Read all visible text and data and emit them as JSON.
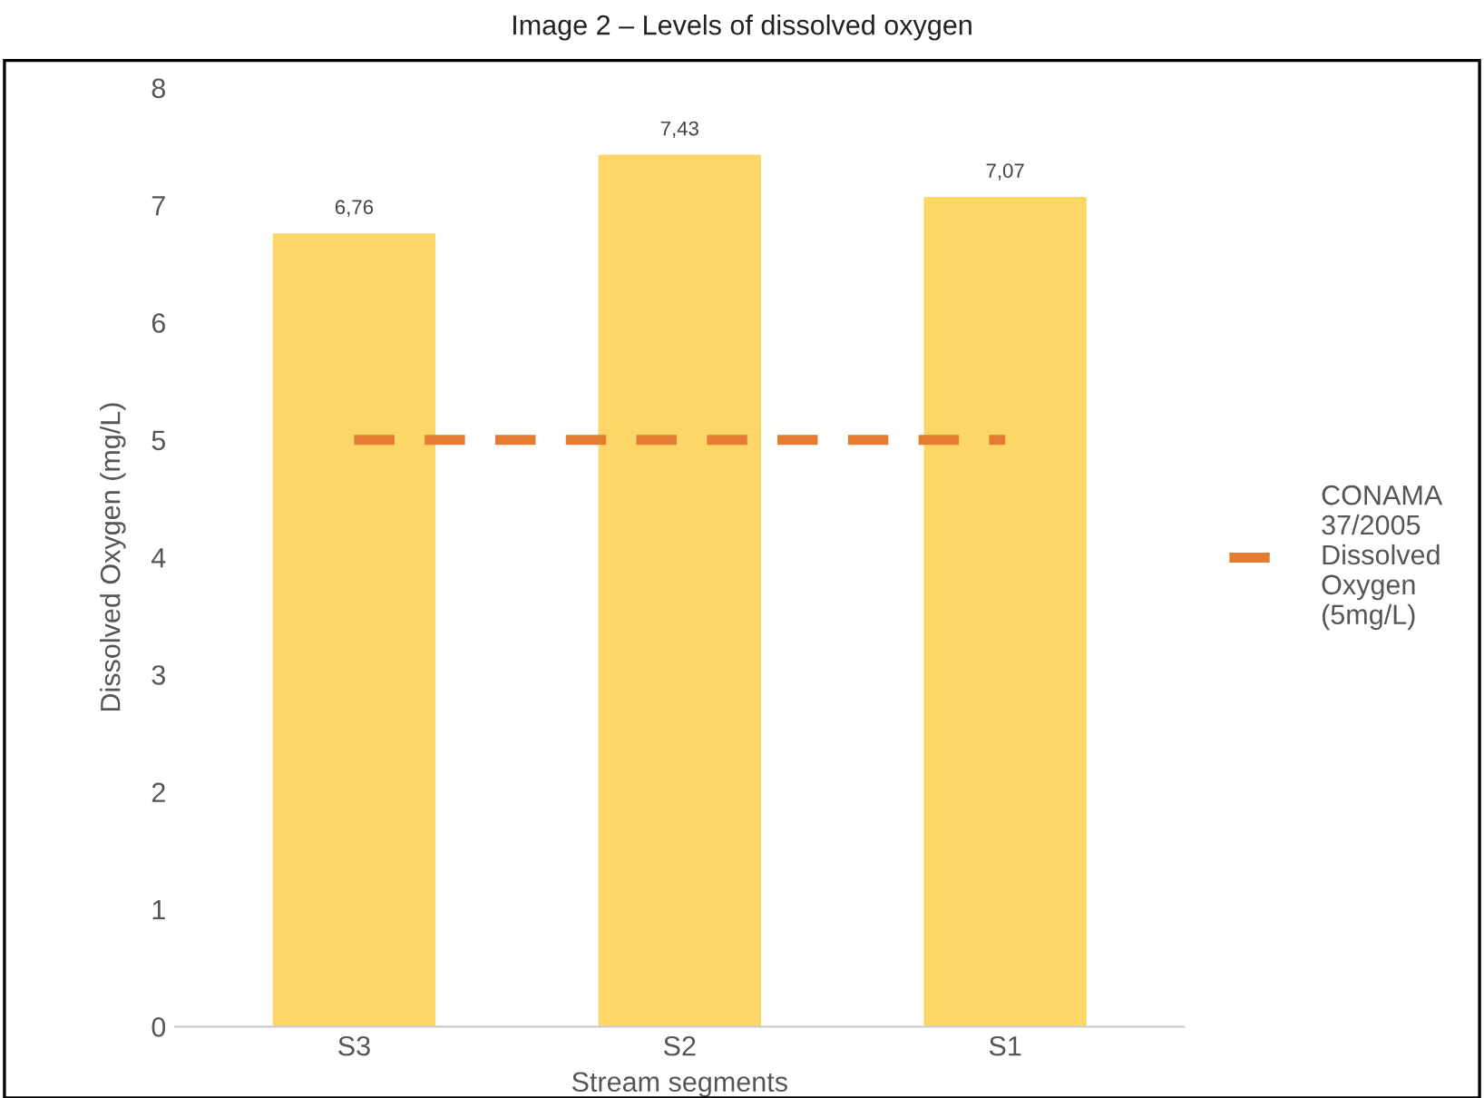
{
  "chart_data": {
    "type": "bar",
    "title": "Image 2 – Levels of dissolved oxygen",
    "xlabel": "Stream segments",
    "ylabel": "Dissolved Oxygen (mg/L)",
    "categories": [
      "S3",
      "S2",
      "S1"
    ],
    "series": [
      {
        "color": "#fdd668",
        "values": [
          6.76,
          7.43,
          7.07
        ],
        "value_labels": [
          "6,76",
          "7,43",
          "7,07"
        ]
      },
      {
        "type": "line",
        "name": "CONAMA 37/2005 Dissolved Oxygen (5mg/L)",
        "color": "#e47d32",
        "values": [
          5,
          5,
          5
        ],
        "line_style": "dashed"
      }
    ],
    "ylim": [
      0,
      8
    ],
    "yticks": [
      0,
      1,
      2,
      3,
      4,
      5,
      6,
      7,
      8
    ],
    "grid": false,
    "legend": "right"
  }
}
